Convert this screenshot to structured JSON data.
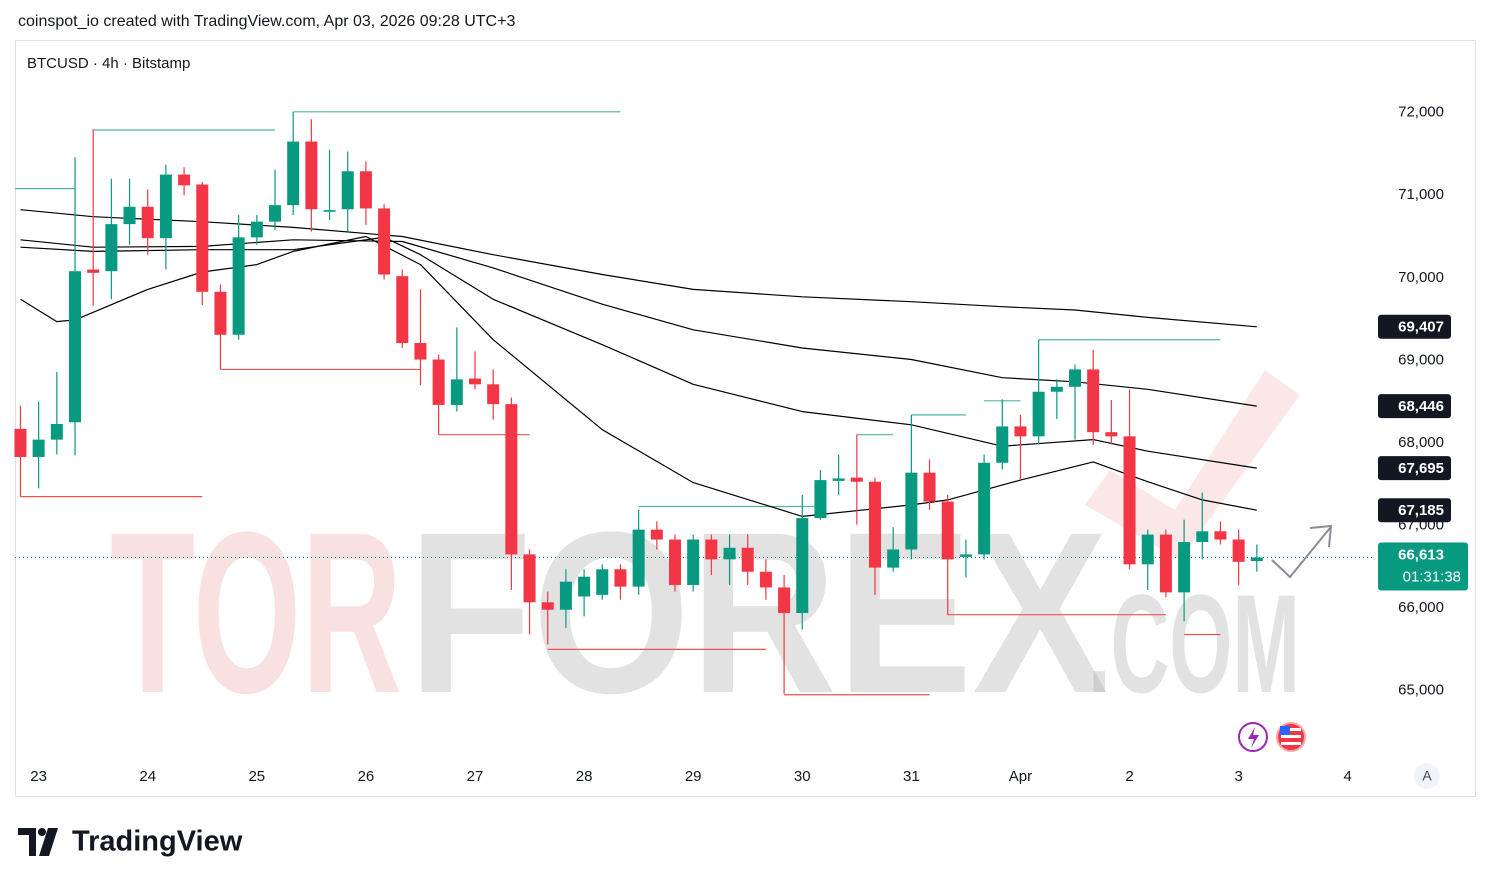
{
  "header": {
    "attribution": "coinspot_io created with TradingView.com, Apr 03, 2026 09:28 UTC+3"
  },
  "chart_data": {
    "type": "candlestick",
    "title": "BTCUSD · 4h · Bitstamp",
    "up_color": "#089981",
    "down_color": "#f23645",
    "x": [
      0,
      1,
      2,
      3,
      4,
      5,
      6,
      7,
      8,
      9,
      10,
      11,
      12,
      13,
      14,
      15,
      16,
      17,
      18,
      19,
      20,
      21,
      22,
      23,
      24,
      25,
      26,
      27,
      28,
      29,
      30,
      31,
      32,
      33,
      34,
      35,
      36,
      37,
      38,
      39,
      40,
      41,
      42,
      43,
      44,
      45,
      46,
      47,
      48,
      49,
      50,
      51,
      52,
      53,
      54,
      55,
      56,
      57,
      58,
      59,
      60,
      61,
      62,
      63,
      64,
      65,
      66,
      67,
      68
    ],
    "open": [
      68170,
      67830,
      68040,
      68250,
      70100,
      70080,
      70650,
      70860,
      70480,
      71250,
      71130,
      69830,
      69310,
      70490,
      70680,
      70880,
      71650,
      70800,
      70830,
      71290,
      70840,
      70020,
      69210,
      69010,
      68460,
      68780,
      68710,
      68470,
      66650,
      66070,
      65980,
      66140,
      66160,
      66470,
      66260,
      66950,
      66830,
      66280,
      66830,
      66590,
      66730,
      66440,
      66250,
      65940,
      67090,
      67540,
      67580,
      67530,
      66490,
      66710,
      67640,
      67290,
      66620,
      66650,
      67760,
      68200,
      68080,
      68620,
      68680,
      68890,
      68130,
      68080,
      66530,
      66890,
      66190,
      66800,
      66930,
      66830,
      66570
    ],
    "high": [
      68450,
      68500,
      68860,
      71460,
      71800,
      71200,
      71200,
      71070,
      71370,
      71340,
      71160,
      69920,
      70760,
      70760,
      71310,
      72010,
      71920,
      71550,
      71530,
      71410,
      70890,
      70100,
      69860,
      69070,
      69400,
      69110,
      68890,
      68550,
      66710,
      66200,
      66470,
      66470,
      66530,
      66530,
      67190,
      67050,
      66890,
      66890,
      66890,
      66890,
      66890,
      66590,
      66400,
      67370,
      67670,
      67860,
      68100,
      67580,
      66980,
      68340,
      67800,
      67370,
      66830,
      67860,
      68530,
      68340,
      69250,
      68770,
      68950,
      69130,
      68520,
      68650,
      66950,
      66950,
      67070,
      67400,
      67050,
      66950,
      66770
    ],
    "low": [
      67350,
      67450,
      67860,
      67850,
      69660,
      69740,
      70400,
      70280,
      70100,
      71000,
      69670,
      68890,
      69250,
      70400,
      70580,
      70760,
      70560,
      70700,
      70560,
      70640,
      69980,
      69150,
      68700,
      68100,
      68380,
      68650,
      68280,
      66220,
      65680,
      65560,
      65760,
      65900,
      66100,
      66100,
      66160,
      66710,
      66200,
      66200,
      66400,
      66280,
      66280,
      66100,
      64960,
      65740,
      67070,
      67370,
      67010,
      66160,
      66440,
      66590,
      67190,
      65920,
      66370,
      66590,
      67680,
      67560,
      67980,
      68290,
      68040,
      67980,
      67980,
      66470,
      66220,
      66130,
      65840,
      66590,
      66770,
      66280,
      66440
    ],
    "close": [
      67830,
      68040,
      68230,
      70080,
      70060,
      70650,
      70860,
      70480,
      71250,
      71120,
      69830,
      69310,
      70490,
      70680,
      70880,
      71650,
      70830,
      70820,
      71290,
      70840,
      70040,
      69210,
      69010,
      68460,
      68770,
      68710,
      68470,
      66650,
      66070,
      65980,
      66320,
      66380,
      66470,
      66260,
      66950,
      66830,
      66280,
      66830,
      66590,
      66730,
      66440,
      66250,
      65940,
      67090,
      67550,
      67570,
      67530,
      66490,
      66710,
      67640,
      67290,
      66590,
      66650,
      67760,
      68200,
      68080,
      68620,
      68680,
      68890,
      68130,
      68080,
      66530,
      66890,
      66190,
      66800,
      66930,
      66830,
      66560,
      66613
    ],
    "xlim": [
      -0.3,
      74.5
    ],
    "xticks": [
      {
        "value": 1,
        "label": "23"
      },
      {
        "value": 7,
        "label": "24"
      },
      {
        "value": 13,
        "label": "25"
      },
      {
        "value": 19,
        "label": "26"
      },
      {
        "value": 25,
        "label": "27"
      },
      {
        "value": 31,
        "label": "28"
      },
      {
        "value": 37,
        "label": "29"
      },
      {
        "value": 43,
        "label": "30"
      },
      {
        "value": 49,
        "label": "31"
      },
      {
        "value": 55,
        "label": "Apr"
      },
      {
        "value": 61,
        "label": "2"
      },
      {
        "value": 67,
        "label": "3"
      },
      {
        "value": 73,
        "label": "4"
      }
    ],
    "ylim": [
      64160,
      72880
    ],
    "yticks": [
      {
        "value": 65000,
        "label": "65,000"
      },
      {
        "value": 66000,
        "label": "66,000"
      },
      {
        "value": 67000,
        "label": "67,000"
      },
      {
        "value": 68000,
        "label": "68,000"
      },
      {
        "value": 69000,
        "label": "69,000"
      },
      {
        "value": 70000,
        "label": "70,000"
      },
      {
        "value": 71000,
        "label": "71,000"
      },
      {
        "value": 72000,
        "label": "72,000"
      }
    ],
    "moving_averages": [
      {
        "color": "#000000",
        "x": [
          0,
          4,
          10,
          15,
          21,
          26,
          32,
          37,
          43,
          49,
          54,
          58,
          62,
          68
        ],
        "values": [
          70825,
          70740,
          70680,
          70610,
          70500,
          70280,
          70040,
          69860,
          69770,
          69710,
          69650,
          69610,
          69520,
          69407
        ]
      },
      {
        "color": "#000000",
        "x": [
          0,
          4,
          10,
          15,
          21,
          26,
          32,
          37,
          43,
          49,
          54,
          58,
          62,
          68
        ],
        "values": [
          70460,
          70370,
          70380,
          70460,
          70440,
          70120,
          69680,
          69370,
          69150,
          69010,
          68790,
          68740,
          68650,
          68446
        ]
      },
      {
        "color": "#000000",
        "x": [
          0,
          4,
          10,
          15,
          20,
          22,
          26,
          32,
          37,
          43,
          49,
          54,
          59,
          62,
          68
        ],
        "values": [
          70370,
          70320,
          70340,
          70340,
          70490,
          70280,
          69740,
          69190,
          68710,
          68380,
          68220,
          67960,
          68040,
          67900,
          67695
        ]
      },
      {
        "color": "#000000",
        "x": [
          0,
          2,
          3,
          7,
          10,
          13,
          15,
          19,
          22,
          26,
          32,
          37,
          43,
          49,
          51,
          55,
          59,
          62,
          65,
          68
        ],
        "values": [
          69740,
          69470,
          69490,
          69860,
          70070,
          70160,
          70320,
          70500,
          70160,
          69250,
          68160,
          67520,
          67110,
          67250,
          67310,
          67550,
          67770,
          67530,
          67310,
          67185
        ]
      }
    ],
    "levels": [
      {
        "value": 71080,
        "x": [
          -0.3,
          3
        ],
        "color": "#4cb5a5"
      },
      {
        "value": 71790,
        "x": [
          4,
          14
        ],
        "color": "#4cb5a5"
      },
      {
        "value": 72010,
        "x": [
          15,
          33
        ],
        "color": "#4cb5a5"
      },
      {
        "value": 67230,
        "x": [
          34,
          44
        ],
        "color": "#4cb5a5"
      },
      {
        "value": 68100,
        "x": [
          46,
          48
        ],
        "color": "#4cb5a5"
      },
      {
        "value": 68340,
        "x": [
          49,
          52
        ],
        "color": "#4cb5a5"
      },
      {
        "value": 68510,
        "x": [
          53,
          55
        ],
        "color": "#4cb5a5"
      },
      {
        "value": 69250,
        "x": [
          56,
          66
        ],
        "color": "#4cb5a5"
      },
      {
        "value": 67350,
        "x": [
          0,
          10
        ],
        "color": "#ef5350"
      },
      {
        "value": 68890,
        "x": [
          11,
          22
        ],
        "color": "#ef5350"
      },
      {
        "value": 68100,
        "x": [
          23,
          28
        ],
        "color": "#ef5350"
      },
      {
        "value": 65500,
        "x": [
          29,
          41
        ],
        "color": "#ef5350"
      },
      {
        "value": 64950,
        "x": [
          42,
          50
        ],
        "color": "#ef5350"
      },
      {
        "value": 65920,
        "x": [
          51,
          63
        ],
        "color": "#ef5350"
      },
      {
        "value": 65680,
        "x": [
          64,
          66
        ],
        "color": "#ef5350"
      }
    ],
    "price_tags": [
      {
        "value": 69407,
        "label": "69,407"
      },
      {
        "value": 68446,
        "label": "68,446"
      },
      {
        "value": 67695,
        "label": "67,695"
      },
      {
        "value": 67185,
        "label": "67,185"
      }
    ],
    "last_price": {
      "value": 66613,
      "label": "66,613",
      "countdown": "01:31:38",
      "color": "#089981"
    },
    "watermark": [
      "TOR",
      "FOREX",
      ".COM"
    ]
  },
  "controls": {
    "auto_scale": "A"
  },
  "footer": {
    "logo": "TradingView"
  }
}
